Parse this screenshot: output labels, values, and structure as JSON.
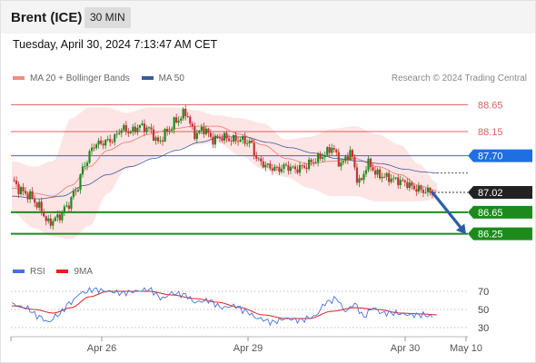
{
  "header": {
    "title": "Brent (ICE)",
    "timeframe": "30 MIN",
    "timestamp": "Tuesday, April 30, 2024 7:13:47 AM CET"
  },
  "legend": {
    "ma20_label": "MA 20 + Bollinger Bands",
    "ma50_label": "MA 50",
    "credit": "Research © 2024 Trading Central",
    "rsi_label": "RSI",
    "rsi_ma_label": "9MA"
  },
  "colors": {
    "ma20": "#f08c84",
    "bollinger_fill": "#fde2e2",
    "ma50": "#3c5a9a",
    "resistance": "#e06060",
    "pivot": "#1f6fe0",
    "support": "#1e8a1e",
    "current": "#222222",
    "up_candle": "#1e8a1e",
    "down_candle": "#c83232",
    "rsi": "#4a70d8",
    "rsi_ma": "#e02020",
    "arrow": "#2b5ea8"
  },
  "chart_data": [
    {
      "type": "candlestick",
      "title": "Brent (ICE) 30 MIN",
      "x_tick_labels": [
        "Apr 26",
        "Apr 29",
        "Apr 30",
        "May 10"
      ],
      "ylim": [
        85.99,
        88.96
      ],
      "levels": [
        {
          "name": "resistance-2",
          "value": 88.65,
          "label": "88.65",
          "kind": "resistance"
        },
        {
          "name": "resistance-1",
          "value": 88.15,
          "label": "88.15",
          "kind": "resistance"
        },
        {
          "name": "pivot",
          "value": 87.7,
          "label": "87.70",
          "kind": "pivot"
        },
        {
          "name": "current",
          "value": 87.02,
          "label": "87.02",
          "kind": "current"
        },
        {
          "name": "support-1",
          "value": 86.65,
          "label": "86.65",
          "kind": "support"
        },
        {
          "name": "support-2",
          "value": 86.25,
          "label": "86.25",
          "kind": "support"
        }
      ],
      "close_anchors": [
        [
          0,
          87.25
        ],
        [
          4,
          87.05
        ],
        [
          8,
          86.95
        ],
        [
          12,
          86.75
        ],
        [
          16,
          86.45
        ],
        [
          20,
          86.55
        ],
        [
          24,
          86.75
        ],
        [
          28,
          87.05
        ],
        [
          32,
          87.55
        ],
        [
          36,
          87.9
        ],
        [
          40,
          87.95
        ],
        [
          44,
          88.0
        ],
        [
          48,
          88.2
        ],
        [
          52,
          88.15
        ],
        [
          56,
          88.25
        ],
        [
          60,
          88.2
        ],
        [
          64,
          87.95
        ],
        [
          68,
          88.15
        ],
        [
          72,
          88.35
        ],
        [
          76,
          88.5
        ],
        [
          80,
          88.1
        ],
        [
          84,
          88.2
        ],
        [
          88,
          88.0
        ],
        [
          92,
          88.05
        ],
        [
          96,
          88.0
        ],
        [
          100,
          88.0
        ],
        [
          104,
          87.95
        ],
        [
          108,
          87.6
        ],
        [
          112,
          87.5
        ],
        [
          116,
          87.45
        ],
        [
          120,
          87.5
        ],
        [
          124,
          87.45
        ],
        [
          128,
          87.5
        ],
        [
          132,
          87.6
        ],
        [
          136,
          87.7
        ],
        [
          140,
          87.85
        ],
        [
          144,
          87.55
        ],
        [
          148,
          87.75
        ],
        [
          152,
          87.2
        ],
        [
          156,
          87.55
        ],
        [
          160,
          87.35
        ],
        [
          164,
          87.3
        ],
        [
          168,
          87.25
        ],
        [
          172,
          87.2
        ],
        [
          176,
          87.1
        ],
        [
          180,
          87.05
        ],
        [
          184,
          87.02
        ]
      ],
      "ma20_anchors": [
        [
          0,
          87.1
        ],
        [
          10,
          87.0
        ],
        [
          18,
          86.95
        ],
        [
          26,
          87.15
        ],
        [
          34,
          87.5
        ],
        [
          42,
          87.8
        ],
        [
          50,
          87.95
        ],
        [
          60,
          88.1
        ],
        [
          70,
          88.2
        ],
        [
          80,
          88.25
        ],
        [
          90,
          88.25
        ],
        [
          100,
          88.1
        ],
        [
          110,
          87.9
        ],
        [
          120,
          87.65
        ],
        [
          130,
          87.55
        ],
        [
          140,
          87.6
        ],
        [
          150,
          87.65
        ],
        [
          160,
          87.5
        ],
        [
          170,
          87.35
        ],
        [
          178,
          87.15
        ],
        [
          186,
          87.05
        ]
      ],
      "bollinger_upper_anchors": [
        [
          0,
          87.6
        ],
        [
          10,
          87.5
        ],
        [
          18,
          87.6
        ],
        [
          26,
          88.4
        ],
        [
          34,
          88.6
        ],
        [
          42,
          88.6
        ],
        [
          50,
          88.5
        ],
        [
          60,
          88.6
        ],
        [
          70,
          88.6
        ],
        [
          80,
          88.55
        ],
        [
          90,
          88.45
        ],
        [
          100,
          88.4
        ],
        [
          110,
          88.3
        ],
        [
          120,
          88.0
        ],
        [
          130,
          88.05
        ],
        [
          140,
          88.2
        ],
        [
          150,
          88.25
        ],
        [
          160,
          88.1
        ],
        [
          170,
          87.9
        ],
        [
          178,
          87.55
        ],
        [
          186,
          87.2
        ]
      ],
      "bollinger_lower_anchors": [
        [
          0,
          86.65
        ],
        [
          10,
          86.35
        ],
        [
          18,
          86.2
        ],
        [
          26,
          86.15
        ],
        [
          34,
          86.4
        ],
        [
          42,
          87.0
        ],
        [
          50,
          87.45
        ],
        [
          60,
          87.65
        ],
        [
          70,
          87.8
        ],
        [
          80,
          87.9
        ],
        [
          90,
          87.95
        ],
        [
          100,
          87.7
        ],
        [
          110,
          87.45
        ],
        [
          120,
          87.3
        ],
        [
          130,
          87.1
        ],
        [
          140,
          86.95
        ],
        [
          150,
          86.95
        ],
        [
          160,
          86.85
        ],
        [
          170,
          86.85
        ],
        [
          178,
          86.85
        ],
        [
          186,
          86.9
        ]
      ],
      "ma50_anchors": [
        [
          0,
          86.95
        ],
        [
          12,
          86.9
        ],
        [
          22,
          86.95
        ],
        [
          32,
          87.15
        ],
        [
          42,
          87.35
        ],
        [
          52,
          87.5
        ],
        [
          62,
          87.65
        ],
        [
          72,
          87.8
        ],
        [
          82,
          87.95
        ],
        [
          92,
          88.05
        ],
        [
          102,
          88.05
        ],
        [
          112,
          87.95
        ],
        [
          122,
          87.85
        ],
        [
          132,
          87.75
        ],
        [
          142,
          87.65
        ],
        [
          152,
          87.6
        ],
        [
          162,
          87.55
        ],
        [
          172,
          87.45
        ],
        [
          180,
          87.4
        ],
        [
          186,
          87.38
        ]
      ],
      "projection": {
        "from": 87.02,
        "to": 86.25
      }
    },
    {
      "type": "line",
      "title": "RSI",
      "ylim": [
        20,
        80
      ],
      "y_ticks": [
        70,
        50,
        30
      ],
      "series": [
        {
          "name": "RSI",
          "anchors": [
            [
              0,
              56
            ],
            [
              6,
              52
            ],
            [
              12,
              42
            ],
            [
              16,
              36
            ],
            [
              20,
              44
            ],
            [
              26,
              58
            ],
            [
              30,
              68
            ],
            [
              36,
              72
            ],
            [
              42,
              70
            ],
            [
              48,
              68
            ],
            [
              54,
              70
            ],
            [
              60,
              72
            ],
            [
              66,
              62
            ],
            [
              70,
              68
            ],
            [
              76,
              66
            ],
            [
              80,
              58
            ],
            [
              86,
              60
            ],
            [
              92,
              52
            ],
            [
              98,
              54
            ],
            [
              102,
              48
            ],
            [
              108,
              40
            ],
            [
              114,
              36
            ],
            [
              120,
              40
            ],
            [
              126,
              38
            ],
            [
              132,
              42
            ],
            [
              138,
              58
            ],
            [
              142,
              62
            ],
            [
              146,
              48
            ],
            [
              150,
              56
            ],
            [
              154,
              42
            ],
            [
              158,
              52
            ],
            [
              162,
              46
            ],
            [
              168,
              46
            ],
            [
              174,
              44
            ],
            [
              180,
              44
            ],
            [
              184,
              42
            ]
          ]
        },
        {
          "name": "9MA",
          "anchors": [
            [
              0,
              54
            ],
            [
              10,
              50
            ],
            [
              18,
              46
            ],
            [
              26,
              52
            ],
            [
              34,
              64
            ],
            [
              42,
              70
            ],
            [
              50,
              70
            ],
            [
              60,
              70
            ],
            [
              70,
              66
            ],
            [
              80,
              62
            ],
            [
              90,
              58
            ],
            [
              100,
              52
            ],
            [
              110,
              44
            ],
            [
              120,
              40
            ],
            [
              130,
              40
            ],
            [
              140,
              48
            ],
            [
              150,
              52
            ],
            [
              160,
              50
            ],
            [
              170,
              46
            ],
            [
              180,
              45
            ],
            [
              186,
              44
            ]
          ]
        }
      ]
    }
  ]
}
